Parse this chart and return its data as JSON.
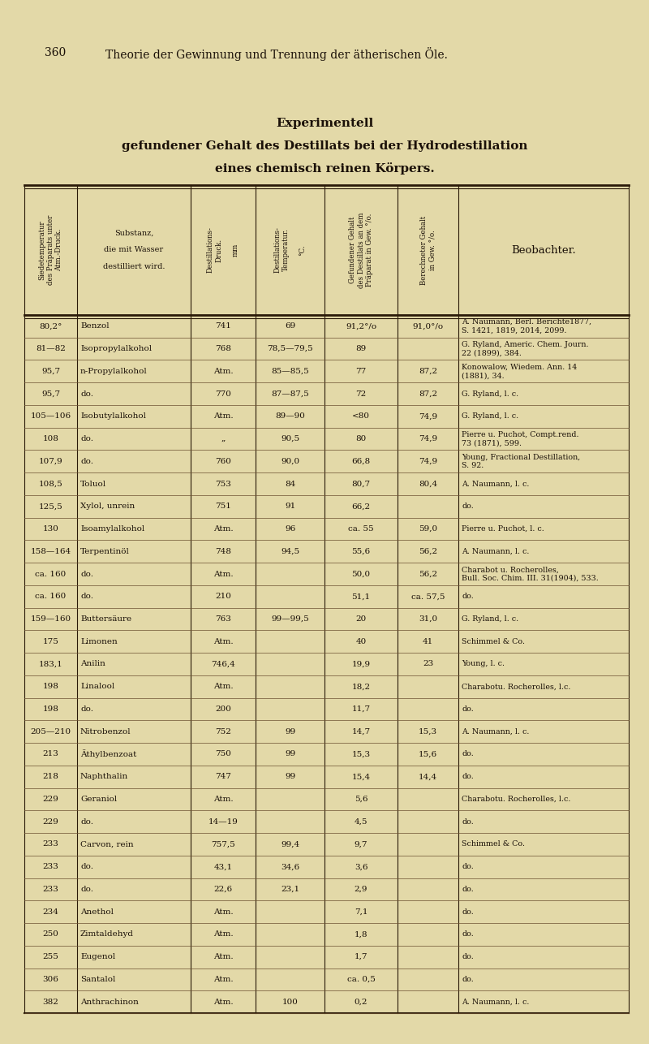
{
  "page_header_num": "360",
  "page_header_text": "Theorie der Gewinnung und Trennung der ätherischen Öle.",
  "title1": "Experimentell",
  "title2": "gefundener Gehalt des Destillats bei der Hydrodestillation",
  "title3": "eines chemisch reinen Körpers.",
  "col_headers_rotated": [
    "Siedetemperatur\ndes Präparats unter\nAtm.-Druck.",
    "Destillations-\nDruck.\n\nmm",
    "Destillations-\nTemperatur.\n\n°C.",
    "Gefundener Gehalt\ndes Destillats an dem\nPräparat in Gew. °/o.",
    "Berechneter Gehalt\nin Gew. °/o."
  ],
  "col2_header": "Substanz,\n\ndie mit Wasser\n\ndestilliert wird.",
  "col7_header": "Beobachter.",
  "rows": [
    [
      "80,2°",
      "Benzol",
      "741",
      "69",
      "91,2°/o",
      "91,0°/o",
      "A. Naumann, Berl. Berichte1877,\nS. 1421, 1819, 2014, 2099."
    ],
    [
      "81—82",
      "Isopropylalkohol",
      "768",
      "78,5—79,5",
      "89",
      "",
      "G. Ryland, Americ. Chem. Journ.\n22 (1899), 384."
    ],
    [
      "95,7",
      "n-Propylalkohol",
      "Atm.",
      "85—85,5",
      "77",
      "87,2",
      "Konowalow, Wiedem. Ann. 14\n(1881), 34."
    ],
    [
      "95,7",
      "do.",
      "770",
      "87—87,5",
      "72",
      "87,2",
      "G. Ryland, l. c."
    ],
    [
      "105—106",
      "Isobutylalkohol",
      "Atm.",
      "89—90",
      "<80",
      "74,9",
      "G. Ryland, l. c."
    ],
    [
      "108",
      "do.",
      "„",
      "90,5",
      "80",
      "74,9",
      "Pierre u. Puchot, Compt.rend.\n73 (1871), 599."
    ],
    [
      "107,9",
      "do.",
      "760",
      "90,0",
      "66,8",
      "74,9",
      "Young, Fractional Destillation,\nS. 92."
    ],
    [
      "108,5",
      "Toluol",
      "753",
      "84",
      "80,7",
      "80,4",
      "A. Naumann, l. c."
    ],
    [
      "125,5",
      "Xylol, unrein",
      "751",
      "91",
      "66,2",
      "",
      "do."
    ],
    [
      "130",
      "Isoamylalkohol",
      "Atm.",
      "96",
      "ca. 55",
      "59,0",
      "Pierre u. Puchot, l. c."
    ],
    [
      "158—164",
      "Terpentinöl",
      "748",
      "94,5",
      "55,6",
      "56,2",
      "A. Naumann, l. c."
    ],
    [
      "ca. 160",
      "do.",
      "Atm.",
      "",
      "50,0",
      "56,2",
      "Charabot u. Rocherolles,\nBull. Soc. Chim. III. 31(1904), 533."
    ],
    [
      "ca. 160",
      "do.",
      "210",
      "",
      "51,1",
      "ca. 57,5",
      "do."
    ],
    [
      "159—160",
      "Buttersäure",
      "763",
      "99—99,5",
      "20",
      "31,0",
      "G. Ryland, l. c."
    ],
    [
      "175",
      "Limonen",
      "Atm.",
      "",
      "40",
      "41",
      "Schimmel & Co."
    ],
    [
      "183,1",
      "Anilin",
      "746,4",
      "",
      "19,9",
      "23",
      "Young, l. c."
    ],
    [
      "198",
      "Linalool",
      "Atm.",
      "",
      "18,2",
      "",
      "Charabotu. Rocherolles, l.c."
    ],
    [
      "198",
      "do.",
      "200",
      "",
      "11,7",
      "",
      "do."
    ],
    [
      "205—210",
      "Nitrobenzol",
      "752",
      "99",
      "14,7",
      "15,3",
      "A. Naumann, l. c."
    ],
    [
      "213",
      "Äthylbenzoat",
      "750",
      "99",
      "15,3",
      "15,6",
      "do."
    ],
    [
      "218",
      "Naphthalin",
      "747",
      "99",
      "15,4",
      "14,4",
      "do."
    ],
    [
      "229",
      "Geraniol",
      "Atm.",
      "",
      "5,6",
      "",
      "Charabotu. Rocherolles, l.c."
    ],
    [
      "229",
      "do.",
      "14—19",
      "",
      "4,5",
      "",
      "do."
    ],
    [
      "233",
      "Carvon, rein",
      "757,5",
      "99,4",
      "9,7",
      "",
      "Schimmel & Co."
    ],
    [
      "233",
      "do.",
      "43,1",
      "34,6",
      "3,6",
      "",
      "do."
    ],
    [
      "233",
      "do.",
      "22,6",
      "23,1",
      "2,9",
      "",
      "do."
    ],
    [
      "234",
      "Anethol",
      "Atm.",
      "",
      "7,1",
      "",
      "do."
    ],
    [
      "250",
      "Zimtaldehyd",
      "Atm.",
      "",
      "1,8",
      "",
      "do."
    ],
    [
      "255",
      "Eugenol",
      "Atm.",
      "",
      "1,7",
      "",
      "do."
    ],
    [
      "306",
      "Santalol",
      "Atm.",
      "",
      "ca. 0,5",
      "",
      "do."
    ],
    [
      "382",
      "Anthrachinon",
      "Atm.",
      "100",
      "0,2",
      "",
      "A. Naumann, l. c."
    ]
  ],
  "bg_color": "#e3d9a8",
  "text_color": "#1a1008",
  "line_color": "#2a1a08"
}
